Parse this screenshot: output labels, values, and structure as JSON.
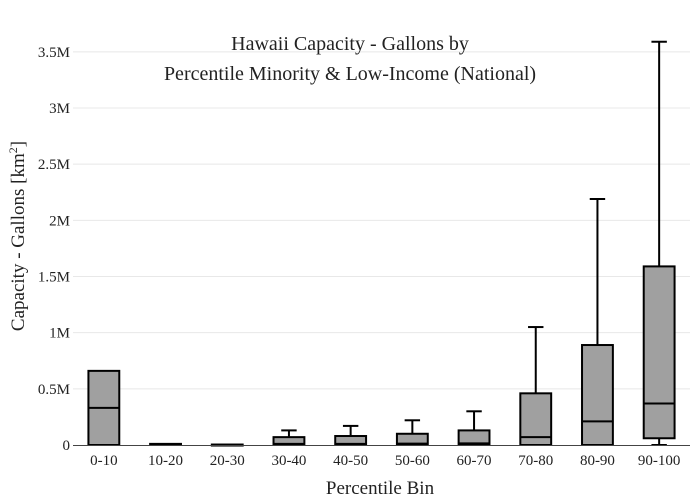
{
  "chart_data": {
    "type": "box",
    "title_lines": [
      "Hawaii Capacity - Gallons by",
      "Percentile Minority & Low-Income (National)"
    ],
    "xlabel": "Percentile Bin",
    "ylabel_main": "Capacity - Gallons  [km",
    "ylabel_sup": "2",
    "ylabel_end": "]",
    "ylim": [
      0,
      3650000
    ],
    "y_ticks": [
      {
        "value": 0,
        "label": "0"
      },
      {
        "value": 500000,
        "label": "0.5M"
      },
      {
        "value": 1000000,
        "label": "1M"
      },
      {
        "value": 1500000,
        "label": "1.5M"
      },
      {
        "value": 2000000,
        "label": "2M"
      },
      {
        "value": 2500000,
        "label": "2.5M"
      },
      {
        "value": 3000000,
        "label": "3M"
      },
      {
        "value": 3500000,
        "label": "3.5M"
      }
    ],
    "grid": true,
    "box_color": "#a0a0a0",
    "categories": [
      "0-10",
      "10-20",
      "20-30",
      "30-40",
      "40-50",
      "50-60",
      "60-70",
      "70-80",
      "80-90",
      "90-100"
    ],
    "boxes": [
      {
        "min": 0,
        "q1": 0,
        "median": 330000,
        "q3": 660000,
        "max": 660000
      },
      {
        "min": 0,
        "q1": 0,
        "median": 5000,
        "q3": 10000,
        "max": 10000
      },
      {
        "min": 0,
        "q1": 0,
        "median": 2000,
        "q3": 4000,
        "max": 4000
      },
      {
        "min": 0,
        "q1": 0,
        "median": 10000,
        "q3": 70000,
        "max": 130000
      },
      {
        "min": 0,
        "q1": 0,
        "median": 10000,
        "q3": 80000,
        "max": 170000
      },
      {
        "min": 0,
        "q1": 0,
        "median": 12000,
        "q3": 100000,
        "max": 220000
      },
      {
        "min": 0,
        "q1": 0,
        "median": 15000,
        "q3": 130000,
        "max": 300000
      },
      {
        "min": 0,
        "q1": 0,
        "median": 70000,
        "q3": 460000,
        "max": 1050000
      },
      {
        "min": 0,
        "q1": 0,
        "median": 210000,
        "q3": 890000,
        "max": 2190000
      },
      {
        "min": 0,
        "q1": 60000,
        "median": 370000,
        "q3": 1590000,
        "max": 3590000
      }
    ]
  }
}
